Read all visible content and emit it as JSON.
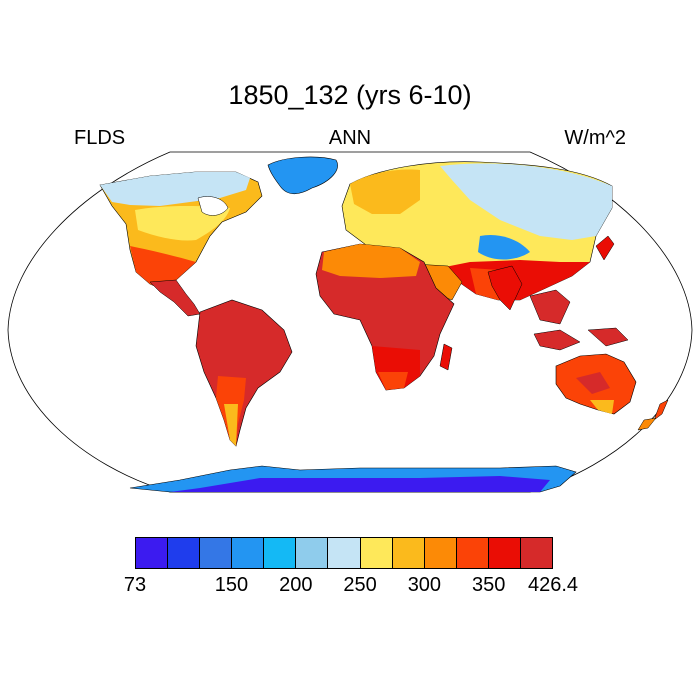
{
  "title": "1850_132 (yrs 6-10)",
  "left_label": "FLDS",
  "center_label": "ANN",
  "right_label": "W/m^2",
  "colorbar": {
    "colors": [
      "#3c1bf0",
      "#1f3ded",
      "#3477e6",
      "#2395f2",
      "#14b9f5",
      "#8fccec",
      "#c5e4f5",
      "#fee85a",
      "#fbba1c",
      "#fc8a06",
      "#fb4307",
      "#ea0d05",
      "#d62a2a"
    ],
    "ticks": [
      "73",
      "150",
      "200",
      "250",
      "300",
      "350",
      "426.4"
    ],
    "tick_positions": [
      0,
      3,
      5,
      7,
      9,
      11,
      13
    ]
  }
}
